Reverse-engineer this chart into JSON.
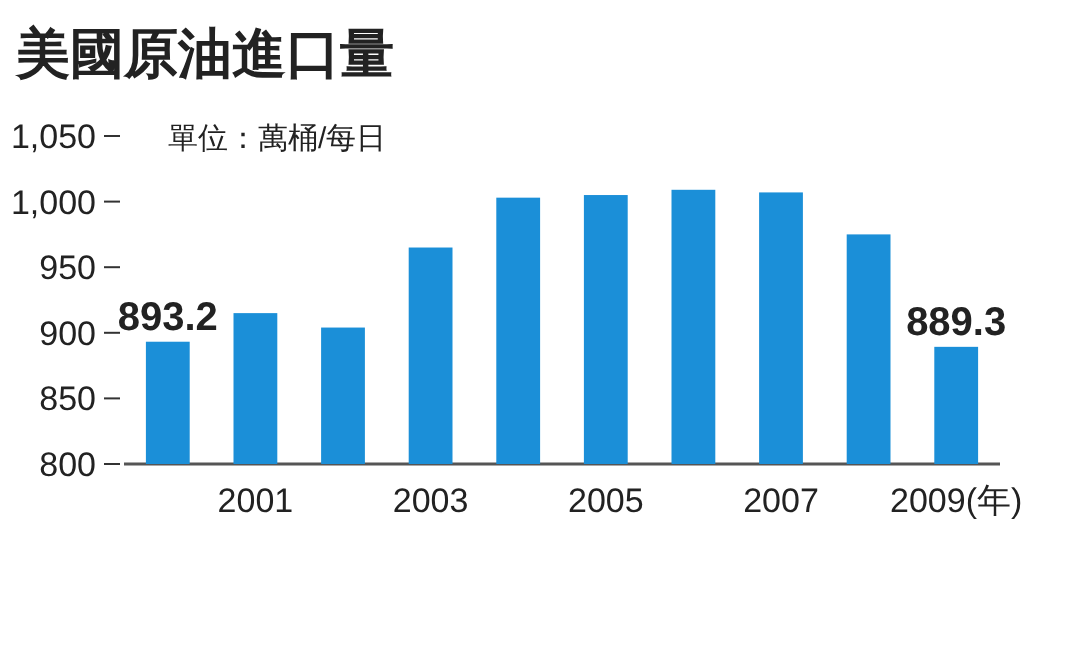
{
  "chart_data": {
    "type": "bar",
    "title": "美國原油進口量",
    "annotations": [
      "單位：萬桶/每日"
    ],
    "categories": [
      null,
      "2001",
      null,
      "2003",
      null,
      "2005",
      null,
      "2007",
      null,
      "2009(年)"
    ],
    "values": [
      893.2,
      915,
      904,
      965,
      1003,
      1005,
      1009,
      1007,
      975,
      889.3
    ],
    "value_labels": [
      "893.2",
      null,
      null,
      null,
      null,
      null,
      null,
      null,
      null,
      "889.3"
    ],
    "color": "#1b8fd8",
    "ylim": [
      800,
      1050
    ],
    "yticks": [
      {
        "value": 1050,
        "label": "1,050"
      },
      {
        "value": 1000,
        "label": "1,000"
      },
      950,
      900,
      850,
      800
    ]
  }
}
